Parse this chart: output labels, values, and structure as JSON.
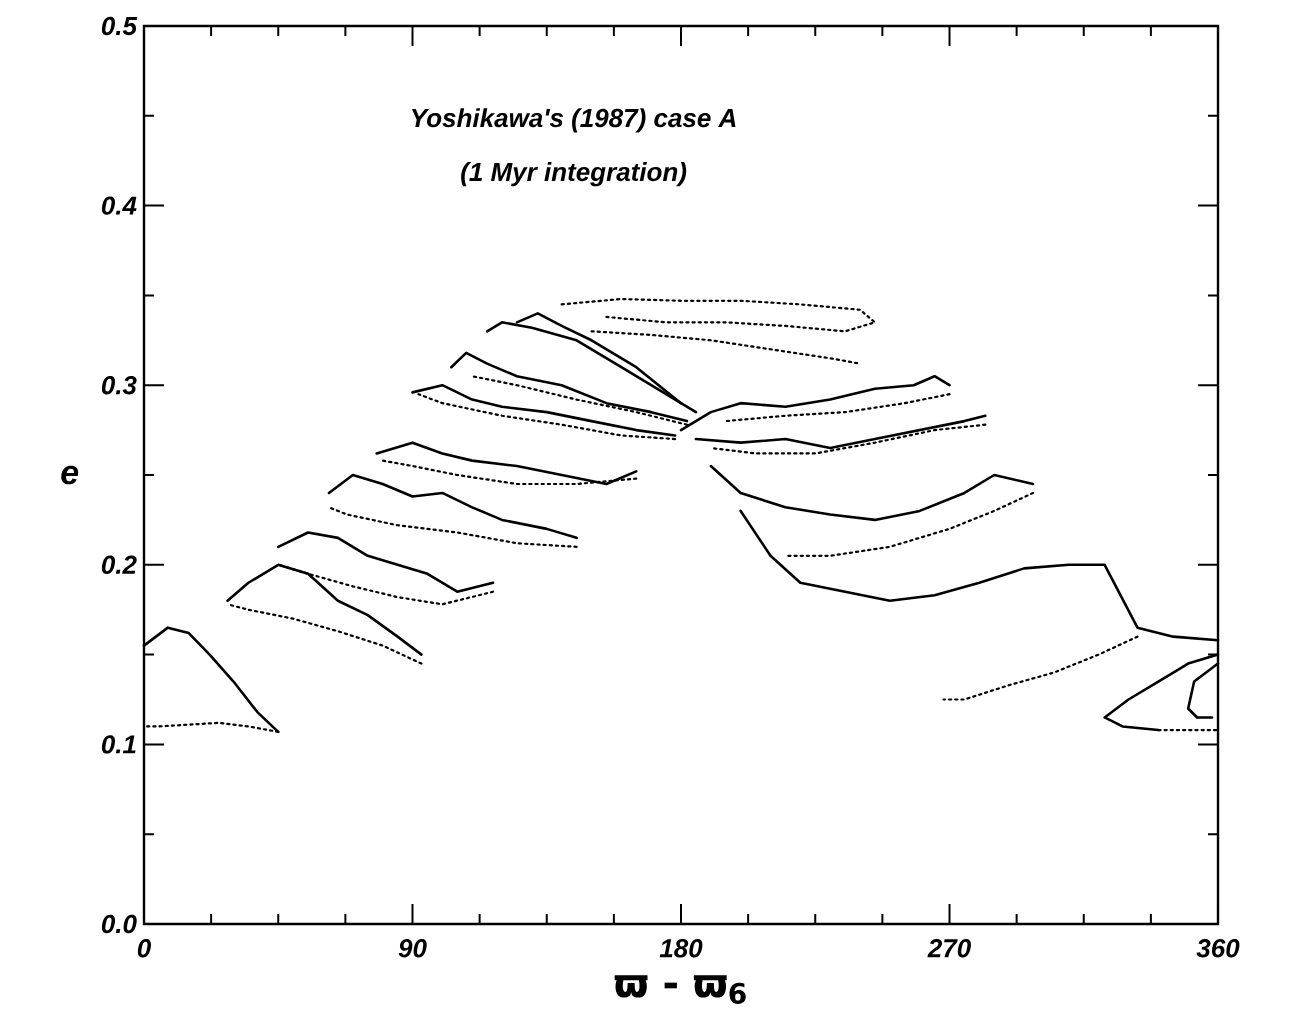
{
  "chart_data": {
    "type": "line",
    "xlabel": "ϖ - ϖ$_{6}$",
    "ylabel": "e",
    "annotations": [
      "Yoshikawa's (1987) case A",
      "(1 Myr integration)"
    ],
    "xlim": [
      0,
      360
    ],
    "ylim": [
      0,
      0.5
    ],
    "xticks": [
      0,
      90,
      180,
      270,
      360
    ],
    "yticks": [
      {
        "value": 0,
        "label": "0.0"
      },
      {
        "value": 0.1,
        "label": "0.1"
      },
      {
        "value": 0.2,
        "label": "0.2"
      },
      {
        "value": 0.3,
        "label": "0.3"
      },
      {
        "value": 0.4,
        "label": "0.4"
      },
      {
        "value": 0.5,
        "label": "0.5"
      }
    ],
    "grid": false,
    "series": [
      {
        "line_style": "solid",
        "color": "#000000",
        "x": [
          0,
          8,
          15,
          22,
          30,
          38,
          45
        ],
        "values": [
          0.155,
          0.165,
          0.162,
          0.15,
          0.135,
          0.118,
          0.107
        ]
      },
      {
        "line_style": "dotted",
        "color": "#000000",
        "x": [
          45,
          35,
          25,
          15,
          5,
          0
        ],
        "values": [
          0.107,
          0.11,
          0.112,
          0.111,
          0.11,
          0.11
        ]
      },
      {
        "line_style": "solid",
        "color": "#000000",
        "x": [
          28,
          35,
          45,
          55,
          65,
          75,
          85,
          93
        ],
        "values": [
          0.18,
          0.19,
          0.2,
          0.195,
          0.18,
          0.172,
          0.16,
          0.15
        ]
      },
      {
        "line_style": "dotted",
        "color": "#000000",
        "x": [
          93,
          80,
          65,
          50,
          35,
          28
        ],
        "values": [
          0.145,
          0.155,
          0.163,
          0.17,
          0.175,
          0.178
        ]
      },
      {
        "line_style": "solid",
        "color": "#000000",
        "x": [
          45,
          55,
          65,
          75,
          85,
          95,
          105,
          117
        ],
        "values": [
          0.21,
          0.218,
          0.215,
          0.205,
          0.2,
          0.195,
          0.185,
          0.19
        ]
      },
      {
        "line_style": "dotted",
        "color": "#000000",
        "x": [
          117,
          100,
          85,
          70,
          55,
          45
        ],
        "values": [
          0.185,
          0.178,
          0.182,
          0.188,
          0.195,
          0.2
        ]
      },
      {
        "line_style": "solid",
        "color": "#000000",
        "x": [
          62,
          70,
          80,
          90,
          100,
          110,
          120,
          135,
          145
        ],
        "values": [
          0.24,
          0.25,
          0.245,
          0.238,
          0.24,
          0.232,
          0.225,
          0.22,
          0.215
        ]
      },
      {
        "line_style": "dotted",
        "color": "#000000",
        "x": [
          145,
          125,
          105,
          85,
          68,
          62
        ],
        "values": [
          0.21,
          0.212,
          0.218,
          0.222,
          0.228,
          0.232
        ]
      },
      {
        "line_style": "solid",
        "color": "#000000",
        "x": [
          78,
          90,
          100,
          110,
          125,
          140,
          155,
          165
        ],
        "values": [
          0.262,
          0.268,
          0.262,
          0.258,
          0.255,
          0.25,
          0.245,
          0.252
        ]
      },
      {
        "line_style": "dotted",
        "color": "#000000",
        "x": [
          165,
          145,
          125,
          105,
          90,
          80
        ],
        "values": [
          0.248,
          0.245,
          0.245,
          0.25,
          0.255,
          0.258
        ]
      },
      {
        "line_style": "solid",
        "color": "#000000",
        "x": [
          90,
          100,
          110,
          120,
          135,
          150,
          165,
          178
        ],
        "values": [
          0.296,
          0.3,
          0.292,
          0.288,
          0.285,
          0.28,
          0.275,
          0.272
        ]
      },
      {
        "line_style": "dotted",
        "color": "#000000",
        "x": [
          178,
          160,
          140,
          120,
          100,
          92
        ],
        "values": [
          0.27,
          0.272,
          0.278,
          0.283,
          0.29,
          0.295
        ]
      },
      {
        "line_style": "solid",
        "color": "#000000",
        "x": [
          103,
          108,
          115,
          125,
          140,
          155,
          170,
          182
        ],
        "values": [
          0.31,
          0.318,
          0.312,
          0.305,
          0.3,
          0.29,
          0.285,
          0.28
        ]
      },
      {
        "line_style": "dotted",
        "color": "#000000",
        "x": [
          182,
          165,
          145,
          125,
          110
        ],
        "values": [
          0.278,
          0.285,
          0.292,
          0.3,
          0.305
        ]
      },
      {
        "line_style": "solid",
        "color": "#000000",
        "x": [
          115,
          120,
          130,
          145,
          160,
          175,
          185
        ],
        "values": [
          0.33,
          0.335,
          0.332,
          0.325,
          0.31,
          0.295,
          0.285
        ]
      },
      {
        "line_style": "solid",
        "color": "#000000",
        "x": [
          125,
          132,
          140,
          150,
          165,
          180
        ],
        "values": [
          0.335,
          0.34,
          0.333,
          0.325,
          0.31,
          0.29
        ]
      },
      {
        "line_style": "dotted",
        "color": "#000000",
        "x": [
          140,
          160,
          180,
          200,
          220,
          240,
          245,
          235,
          215,
          195,
          175,
          155
        ],
        "values": [
          0.345,
          0.348,
          0.347,
          0.347,
          0.345,
          0.342,
          0.335,
          0.33,
          0.333,
          0.335,
          0.335,
          0.338
        ]
      },
      {
        "line_style": "dotted",
        "color": "#000000",
        "x": [
          150,
          170,
          190,
          210,
          230,
          240
        ],
        "values": [
          0.33,
          0.328,
          0.325,
          0.32,
          0.315,
          0.312
        ]
      },
      {
        "line_style": "solid",
        "color": "#000000",
        "x": [
          180,
          190,
          200,
          215,
          230,
          245,
          258,
          265,
          270
        ],
        "values": [
          0.275,
          0.285,
          0.29,
          0.288,
          0.292,
          0.298,
          0.3,
          0.305,
          0.3
        ]
      },
      {
        "line_style": "dotted",
        "color": "#000000",
        "x": [
          270,
          255,
          235,
          215,
          195
        ],
        "values": [
          0.295,
          0.29,
          0.285,
          0.283,
          0.28
        ]
      },
      {
        "line_style": "solid",
        "color": "#000000",
        "x": [
          185,
          200,
          215,
          230,
          245,
          260,
          275,
          282
        ],
        "values": [
          0.27,
          0.268,
          0.27,
          0.265,
          0.27,
          0.275,
          0.28,
          0.283
        ]
      },
      {
        "line_style": "dotted",
        "color": "#000000",
        "x": [
          282,
          265,
          245,
          225,
          205,
          190
        ],
        "values": [
          0.278,
          0.275,
          0.268,
          0.262,
          0.262,
          0.265
        ]
      },
      {
        "line_style": "solid",
        "color": "#000000",
        "x": [
          190,
          200,
          215,
          230,
          245,
          260,
          275,
          285,
          298
        ],
        "values": [
          0.255,
          0.24,
          0.232,
          0.228,
          0.225,
          0.23,
          0.24,
          0.25,
          0.245
        ]
      },
      {
        "line_style": "dotted",
        "color": "#000000",
        "x": [
          298,
          285,
          270,
          250,
          230,
          215
        ],
        "values": [
          0.24,
          0.23,
          0.22,
          0.21,
          0.205,
          0.205
        ]
      },
      {
        "line_style": "solid",
        "color": "#000000",
        "x": [
          200,
          210,
          220,
          235,
          250,
          265,
          280,
          295,
          310,
          322,
          333,
          345,
          360
        ],
        "values": [
          0.23,
          0.205,
          0.19,
          0.185,
          0.18,
          0.183,
          0.19,
          0.198,
          0.2,
          0.2,
          0.165,
          0.16,
          0.158
        ]
      },
      {
        "line_style": "dotted",
        "color": "#000000",
        "x": [
          333,
          320,
          305,
          290,
          275,
          268
        ],
        "values": [
          0.16,
          0.15,
          0.14,
          0.133,
          0.125,
          0.125
        ]
      },
      {
        "line_style": "solid",
        "color": "#000000",
        "x": [
          360,
          350,
          340,
          330,
          322,
          328,
          340
        ],
        "values": [
          0.15,
          0.145,
          0.135,
          0.125,
          0.115,
          0.11,
          0.108
        ]
      },
      {
        "line_style": "dotted",
        "color": "#000000",
        "x": [
          340,
          350,
          360
        ],
        "values": [
          0.108,
          0.108,
          0.108
        ]
      },
      {
        "line_style": "solid",
        "color": "#000000",
        "x": [
          360,
          352,
          350,
          353,
          358
        ],
        "values": [
          0.145,
          0.135,
          0.12,
          0.115,
          0.115
        ]
      }
    ]
  }
}
